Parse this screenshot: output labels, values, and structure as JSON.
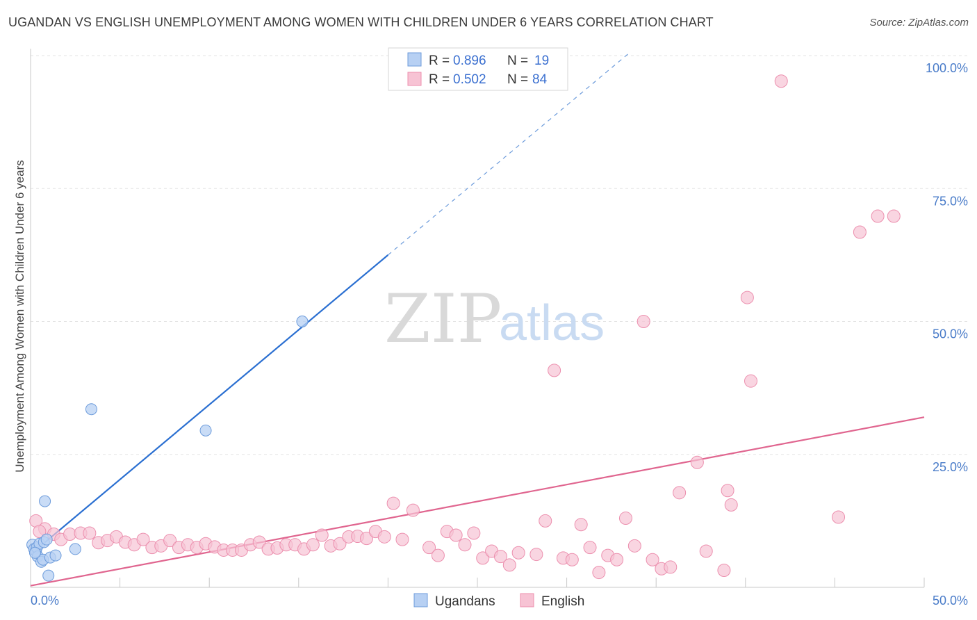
{
  "title": "UGANDAN VS ENGLISH UNEMPLOYMENT AMONG WOMEN WITH CHILDREN UNDER 6 YEARS CORRELATION CHART",
  "source": "Source: ZipAtlas.com",
  "watermark": {
    "zip": "ZIP",
    "atlas": "atlas"
  },
  "colors": {
    "ugandans_fill": "#b7d0f3",
    "ugandans_stroke": "#6c9bdb",
    "ugandans_line": "#2a6fd1",
    "english_fill": "#f7c3d4",
    "english_stroke": "#ec8fae",
    "english_line": "#e0658f"
  },
  "legend": {
    "rows": [
      {
        "r_label": "R =",
        "r_value": "0.896",
        "n_label": "N =",
        "n_value": "19"
      },
      {
        "r_label": "R =",
        "r_value": "0.502",
        "n_label": "N =",
        "n_value": "84"
      }
    ]
  },
  "chart_data": {
    "type": "scatter",
    "title": "UGANDAN VS ENGLISH UNEMPLOYMENT AMONG WOMEN WITH CHILDREN UNDER 6 YEARS CORRELATION CHART",
    "xlabel": "",
    "ylabel": "Unemployment Among Women with Children Under 6 years",
    "xlim": [
      0,
      50
    ],
    "ylim": [
      0,
      103
    ],
    "x_tick_labels": [
      "0.0%",
      "50.0%"
    ],
    "y_ticks": [
      25,
      50,
      75,
      100
    ],
    "y_tick_labels": [
      "25.0%",
      "50.0%",
      "75.0%",
      "100.0%"
    ],
    "legend_position": "top-center",
    "series": [
      {
        "name": "Ugandans",
        "R": 0.896,
        "N": 19,
        "trend": {
          "x0": 0,
          "y0": 6.2,
          "x1": 20,
          "y1": 62.5,
          "dashed_to_x": 33.5
        },
        "points": [
          [
            0.1,
            8.0
          ],
          [
            0.2,
            7.2
          ],
          [
            0.3,
            6.8
          ],
          [
            0.35,
            7.5
          ],
          [
            0.4,
            5.8
          ],
          [
            0.5,
            8.2
          ],
          [
            0.6,
            4.8
          ],
          [
            0.7,
            5.2
          ],
          [
            0.75,
            8.5
          ],
          [
            0.8,
            16.2
          ],
          [
            0.9,
            9.0
          ],
          [
            1.0,
            2.2
          ],
          [
            1.1,
            5.6
          ],
          [
            1.4,
            6.0
          ],
          [
            2.5,
            7.2
          ],
          [
            3.4,
            33.5
          ],
          [
            9.8,
            29.5
          ],
          [
            15.2,
            50.0
          ],
          [
            0.25,
            6.5
          ]
        ]
      },
      {
        "name": "English",
        "R": 0.502,
        "N": 84,
        "trend": {
          "x0": 0,
          "y0": 0.3,
          "x1": 50,
          "y1": 32.0
        },
        "points": [
          [
            0.3,
            12.5
          ],
          [
            0.8,
            11.0
          ],
          [
            1.3,
            10.0
          ],
          [
            1.7,
            9.0
          ],
          [
            2.2,
            10.0
          ],
          [
            2.8,
            10.2
          ],
          [
            3.3,
            10.2
          ],
          [
            3.8,
            8.4
          ],
          [
            4.3,
            8.8
          ],
          [
            4.8,
            9.5
          ],
          [
            5.3,
            8.5
          ],
          [
            5.8,
            8.0
          ],
          [
            6.3,
            9.0
          ],
          [
            6.8,
            7.5
          ],
          [
            7.3,
            7.8
          ],
          [
            7.8,
            8.8
          ],
          [
            8.3,
            7.5
          ],
          [
            8.8,
            8.0
          ],
          [
            9.3,
            7.5
          ],
          [
            9.8,
            8.2
          ],
          [
            10.3,
            7.6
          ],
          [
            10.8,
            7.0
          ],
          [
            11.3,
            7.0
          ],
          [
            11.8,
            7.0
          ],
          [
            12.3,
            8.0
          ],
          [
            12.8,
            8.5
          ],
          [
            13.3,
            7.2
          ],
          [
            13.8,
            7.4
          ],
          [
            14.3,
            8.0
          ],
          [
            14.8,
            8.0
          ],
          [
            15.3,
            7.2
          ],
          [
            15.8,
            8.0
          ],
          [
            16.3,
            9.8
          ],
          [
            16.8,
            7.8
          ],
          [
            17.3,
            8.2
          ],
          [
            17.8,
            9.5
          ],
          [
            18.3,
            9.6
          ],
          [
            18.8,
            9.2
          ],
          [
            19.3,
            10.5
          ],
          [
            19.8,
            9.5
          ],
          [
            20.3,
            15.8
          ],
          [
            20.8,
            9.0
          ],
          [
            21.4,
            14.5
          ],
          [
            22.3,
            7.5
          ],
          [
            22.8,
            6.0
          ],
          [
            23.3,
            10.5
          ],
          [
            23.8,
            9.8
          ],
          [
            24.3,
            8.0
          ],
          [
            24.8,
            10.2
          ],
          [
            25.3,
            5.5
          ],
          [
            25.8,
            6.8
          ],
          [
            26.3,
            5.8
          ],
          [
            26.8,
            4.2
          ],
          [
            27.3,
            6.5
          ],
          [
            28.3,
            6.2
          ],
          [
            28.8,
            12.5
          ],
          [
            29.3,
            40.8
          ],
          [
            29.8,
            5.5
          ],
          [
            30.3,
            5.2
          ],
          [
            30.8,
            11.8
          ],
          [
            31.3,
            7.5
          ],
          [
            31.8,
            2.8
          ],
          [
            32.3,
            6.0
          ],
          [
            32.8,
            5.2
          ],
          [
            33.3,
            13.0
          ],
          [
            33.8,
            7.8
          ],
          [
            34.3,
            50.0
          ],
          [
            34.8,
            5.2
          ],
          [
            35.3,
            3.5
          ],
          [
            35.8,
            3.8
          ],
          [
            36.3,
            17.8
          ],
          [
            37.3,
            23.5
          ],
          [
            37.8,
            6.8
          ],
          [
            38.8,
            3.2
          ],
          [
            39.0,
            18.2
          ],
          [
            39.2,
            15.5
          ],
          [
            40.1,
            54.5
          ],
          [
            40.3,
            38.8
          ],
          [
            42.0,
            95.2
          ],
          [
            45.2,
            13.2
          ],
          [
            46.4,
            66.8
          ],
          [
            47.4,
            69.8
          ],
          [
            48.3,
            69.8
          ],
          [
            0.5,
            10.5
          ]
        ]
      }
    ]
  }
}
